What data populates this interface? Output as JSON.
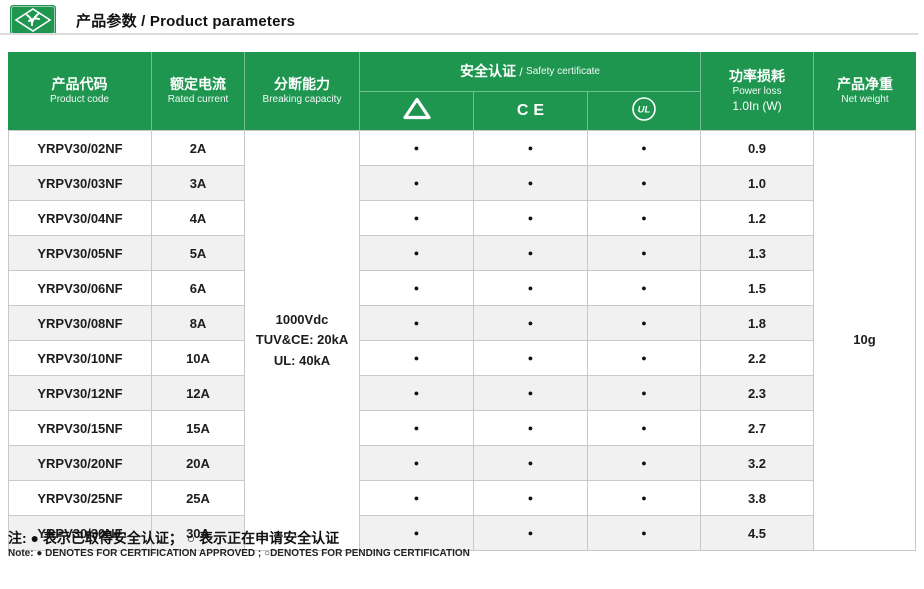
{
  "page": {
    "title": "产品参数 / Product parameters"
  },
  "colors": {
    "header_green": "#1e9650",
    "row_alt": "#f1f1f1",
    "grid_border": "#c9c9c9",
    "logo_green": "#1e9650"
  },
  "table": {
    "headers": {
      "product_code": {
        "zh": "产品代码",
        "en": "Product code"
      },
      "rated_current": {
        "zh": "额定电流",
        "en": "Rated current"
      },
      "breaking_capacity": {
        "zh": "分断能力",
        "en": "Breaking capacity"
      },
      "safety_certificate": {
        "zh": "安全认证",
        "sep": " / ",
        "en": "Safety certificate"
      },
      "power_loss": {
        "zh": "功率损耗",
        "en": "Power loss",
        "sub": "1.0In (W)"
      },
      "net_weight": {
        "zh": "产品净重",
        "en": "Net weight"
      }
    },
    "cert_columns": [
      {
        "icon": "tuv-triangle-icon",
        "label": ""
      },
      {
        "icon": "ce-mark-icon",
        "label": "CE"
      },
      {
        "icon": "ul-mark-icon",
        "label": "UL"
      }
    ],
    "breaking_capacity_value": [
      "1000Vdc",
      "TUV&CE: 20kA",
      "UL: 40kA"
    ],
    "net_weight_value": "10g",
    "approved_symbol": "●",
    "rows": [
      {
        "code": "YRPV30/02NF",
        "current": "2A",
        "tuv": "●",
        "ce": "●",
        "ul": "●",
        "power_loss": "0.9"
      },
      {
        "code": "YRPV30/03NF",
        "current": "3A",
        "tuv": "●",
        "ce": "●",
        "ul": "●",
        "power_loss": "1.0"
      },
      {
        "code": "YRPV30/04NF",
        "current": "4A",
        "tuv": "●",
        "ce": "●",
        "ul": "●",
        "power_loss": "1.2"
      },
      {
        "code": "YRPV30/05NF",
        "current": "5A",
        "tuv": "●",
        "ce": "●",
        "ul": "●",
        "power_loss": "1.3"
      },
      {
        "code": "YRPV30/06NF",
        "current": "6A",
        "tuv": "●",
        "ce": "●",
        "ul": "●",
        "power_loss": "1.5"
      },
      {
        "code": "YRPV30/08NF",
        "current": "8A",
        "tuv": "●",
        "ce": "●",
        "ul": "●",
        "power_loss": "1.8"
      },
      {
        "code": "YRPV30/10NF",
        "current": "10A",
        "tuv": "●",
        "ce": "●",
        "ul": "●",
        "power_loss": "2.2"
      },
      {
        "code": "YRPV30/12NF",
        "current": "12A",
        "tuv": "●",
        "ce": "●",
        "ul": "●",
        "power_loss": "2.3"
      },
      {
        "code": "YRPV30/15NF",
        "current": "15A",
        "tuv": "●",
        "ce": "●",
        "ul": "●",
        "power_loss": "2.7"
      },
      {
        "code": "YRPV30/20NF",
        "current": "20A",
        "tuv": "●",
        "ce": "●",
        "ul": "●",
        "power_loss": "3.2"
      },
      {
        "code": "YRPV30/25NF",
        "current": "25A",
        "tuv": "●",
        "ce": "●",
        "ul": "●",
        "power_loss": "3.8"
      },
      {
        "code": "YRPV30/30NF",
        "current": "30A",
        "tuv": "●",
        "ce": "●",
        "ul": "●",
        "power_loss": "4.5"
      }
    ]
  },
  "note": {
    "zh": "注: ● 表示已取得安全认证； ○ 表示正在申请安全认证",
    "en": "Note: ● DENOTES FOR CERTIFICATION APPROVED ; ○DENOTES FOR PENDING CERTIFICATION"
  }
}
